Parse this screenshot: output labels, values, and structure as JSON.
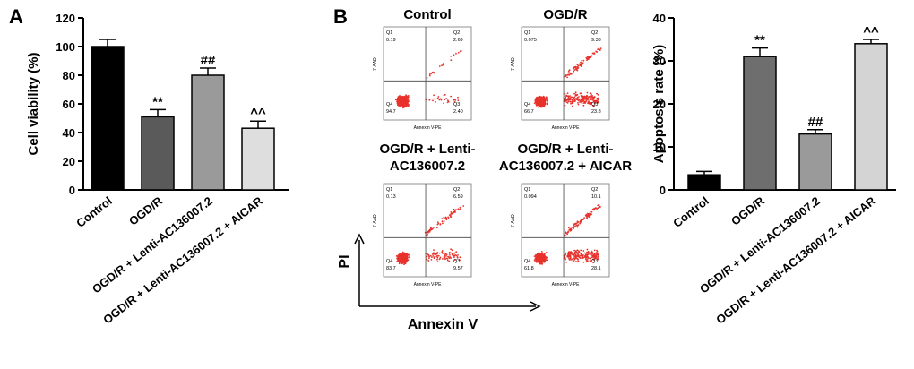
{
  "panels": {
    "A": "A",
    "B": "B"
  },
  "chart_data": [
    {
      "type": "bar",
      "panel": "A",
      "categories": [
        "Control",
        "OGD/R",
        "OGD/R + Lenti-AC136007.2",
        "OGD/R + Lenti-AC136007.2 + AICAR"
      ],
      "values": [
        100,
        51,
        80,
        43
      ],
      "errors": [
        5,
        5,
        5,
        5
      ],
      "annotations": [
        "",
        "**",
        "##",
        "^^"
      ],
      "ylabel": "Cell viability (%)",
      "ylim": [
        0,
        120
      ],
      "yticks": [
        0,
        20,
        40,
        60,
        80,
        100,
        120
      ],
      "colors": [
        "#000000",
        "#5a5a5a",
        "#9a9a9a",
        "#dedede"
      ]
    },
    {
      "type": "bar",
      "panel": "B-right",
      "categories": [
        "Control",
        "OGD/R",
        "OGD/R + Lenti-AC136007.2",
        "OGD/R + Lenti-AC136007.2 + AICAR"
      ],
      "values": [
        3.5,
        31,
        13,
        34
      ],
      "errors": [
        0.8,
        2.0,
        1.0,
        1.0
      ],
      "annotations": [
        "",
        "**",
        "##",
        "^^"
      ],
      "ylabel": "Apoptosis rate (%)",
      "ylim": [
        0,
        40
      ],
      "yticks": [
        0,
        10,
        20,
        30,
        40
      ],
      "colors": [
        "#000000",
        "#6e6e6e",
        "#9a9a9a",
        "#d4d4d4"
      ]
    },
    {
      "type": "scatter",
      "panel": "B-flow",
      "xlabel": "Annexin V",
      "ylabel": "PI",
      "axis_x_label": "Annexin V-PE",
      "axis_y_label": "7-AAD",
      "plots": [
        {
          "title": "Control",
          "quadrants": {
            "Q1": "Q1",
            "Q2": "Q2",
            "Q3": "Q3",
            "Q4": "Q4"
          },
          "values": {
            "Q1": "0.19",
            "Q2": "2.69",
            "Q3": "2.40",
            "Q4": "94.7"
          }
        },
        {
          "title": "OGD/R",
          "quadrants": {
            "Q1": "Q1",
            "Q2": "Q2",
            "Q3": "Q3",
            "Q4": "Q4"
          },
          "values": {
            "Q1": "0.075",
            "Q2": "9.38",
            "Q3": "23.8",
            "Q4": "66.7"
          }
        },
        {
          "title": "OGD/R + Lenti-",
          "title2": "AC136007.2",
          "quadrants": {
            "Q1": "Q1",
            "Q2": "Q2",
            "Q3": "Q3",
            "Q4": "Q4"
          },
          "values": {
            "Q1": "0.13",
            "Q2": "6.59",
            "Q3": "9.57",
            "Q4": "83.7"
          }
        },
        {
          "title": "OGD/R + Lenti-",
          "title2": "AC136007.2 + AICAR",
          "quadrants": {
            "Q1": "Q1",
            "Q2": "Q2",
            "Q3": "Q3",
            "Q4": "Q4"
          },
          "values": {
            "Q1": "0.094",
            "Q2": "10.1",
            "Q3": "28.1",
            "Q4": "61.8"
          }
        }
      ]
    }
  ]
}
